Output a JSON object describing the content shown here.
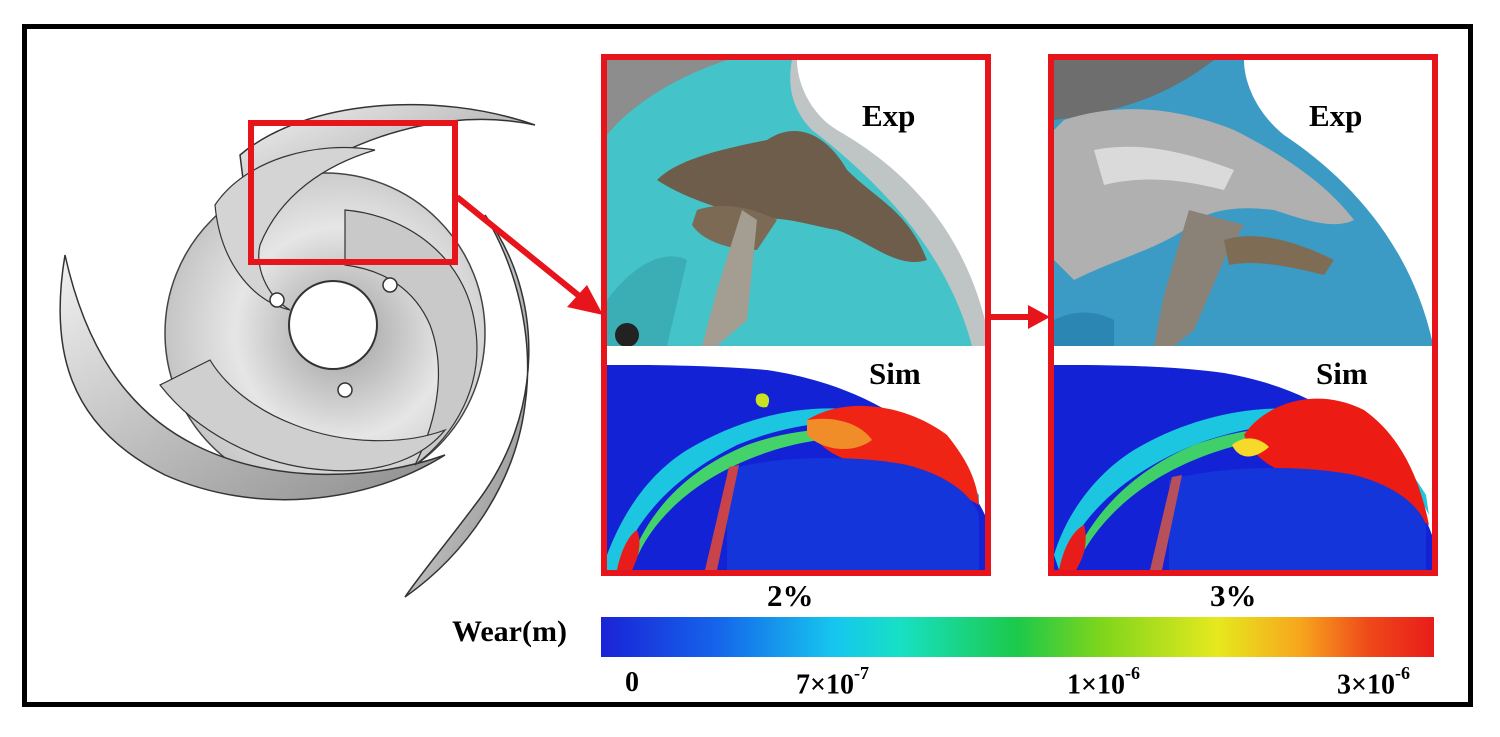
{
  "panels": [
    {
      "exp_label": "Exp",
      "sim_label": "Sim",
      "percent": "2%"
    },
    {
      "exp_label": "Exp",
      "sim_label": "Sim",
      "percent": "3%"
    }
  ],
  "colorbar": {
    "title": "Wear(m)",
    "ticks": [
      {
        "base": "0",
        "exp": ""
      },
      {
        "base": "7×10",
        "exp": "-7"
      },
      {
        "base": "1×10",
        "exp": "-6"
      },
      {
        "base": "3×10",
        "exp": "-6"
      }
    ]
  },
  "colors": {
    "highlight": "#e8141b",
    "blade_fill": "#bfbfbf",
    "photo_bg": "#44c3c9"
  }
}
